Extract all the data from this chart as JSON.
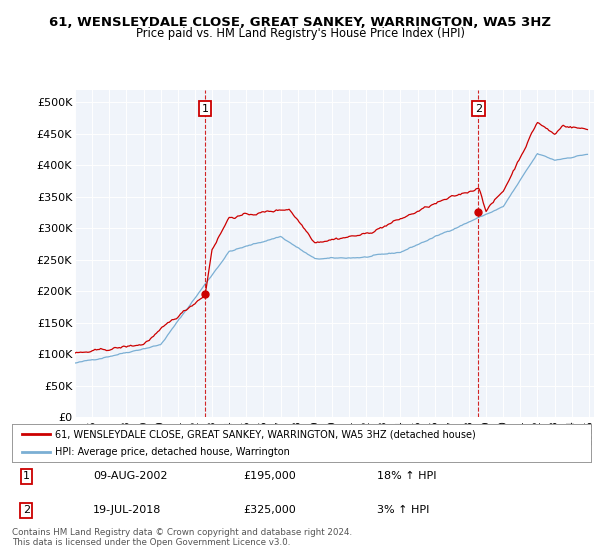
{
  "title": "61, WENSLEYDALE CLOSE, GREAT SANKEY, WARRINGTON, WA5 3HZ",
  "subtitle": "Price paid vs. HM Land Registry's House Price Index (HPI)",
  "plot_bg_color": "#f0f4fa",
  "fig_bg_color": "#ffffff",
  "red_line_color": "#cc0000",
  "blue_line_color": "#7bafd4",
  "dashed_color": "#cc0000",
  "ylim": [
    0,
    520000
  ],
  "yticks": [
    0,
    50000,
    100000,
    150000,
    200000,
    250000,
    300000,
    350000,
    400000,
    450000,
    500000
  ],
  "ytick_labels": [
    "£0",
    "£50K",
    "£100K",
    "£150K",
    "£200K",
    "£250K",
    "£300K",
    "£350K",
    "£400K",
    "£450K",
    "£500K"
  ],
  "start_year": 1995,
  "end_year": 2025,
  "year1": 2002.6,
  "year2": 2018.55,
  "price1": 195000,
  "price2": 325000,
  "legend_label1": "61, WENSLEYDALE CLOSE, GREAT SANKEY, WARRINGTON, WA5 3HZ (detached house)",
  "legend_label2": "HPI: Average price, detached house, Warrington",
  "note1_date": "09-AUG-2002",
  "note1_price": "£195,000",
  "note1_hpi": "18% ↑ HPI",
  "note2_date": "19-JUL-2018",
  "note2_price": "£325,000",
  "note2_hpi": "3% ↑ HPI",
  "copyright": "Contains HM Land Registry data © Crown copyright and database right 2024.\nThis data is licensed under the Open Government Licence v3.0."
}
